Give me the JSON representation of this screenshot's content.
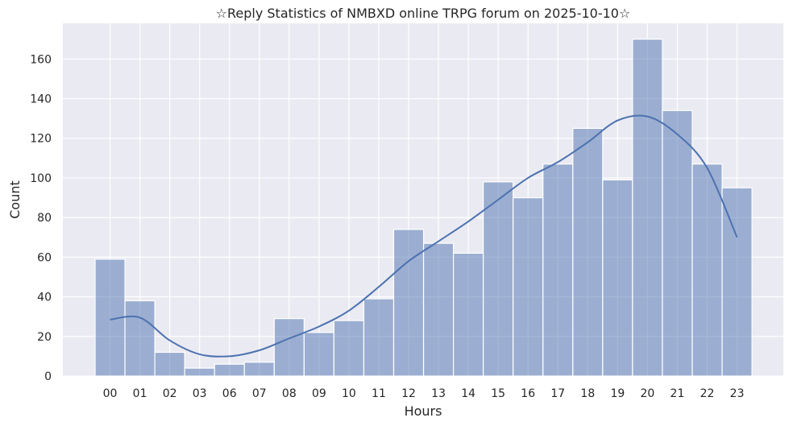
{
  "chart_data": {
    "type": "bar",
    "title": "☆Reply Statistics of NMBXD online TRPG forum on 2025-10-10☆",
    "xlabel": "Hours",
    "ylabel": "Count",
    "categories": [
      "00",
      "01",
      "02",
      "03",
      "06",
      "07",
      "08",
      "09",
      "10",
      "11",
      "12",
      "13",
      "14",
      "15",
      "16",
      "17",
      "18",
      "19",
      "20",
      "21",
      "22",
      "23"
    ],
    "values": [
      59,
      38,
      12,
      4,
      6,
      7,
      29,
      22,
      28,
      39,
      74,
      67,
      62,
      98,
      90,
      107,
      125,
      99,
      170,
      134,
      107,
      95
    ],
    "kde_values": [
      28.5,
      29.5,
      18,
      11,
      10,
      13,
      19,
      25,
      33,
      45,
      58,
      68,
      78,
      89,
      100,
      108,
      118,
      129,
      131,
      122,
      105,
      70
    ],
    "ylim": [
      0,
      178
    ],
    "yticks": [
      0,
      20,
      40,
      60,
      80,
      100,
      120,
      140,
      160
    ],
    "grid": true,
    "colors": {
      "background": "#eaeaf2",
      "grid": "#ffffff",
      "bar_fill": "#4c72b0",
      "bar_opacity": 0.5,
      "kde_line": "#4c72b0"
    }
  }
}
